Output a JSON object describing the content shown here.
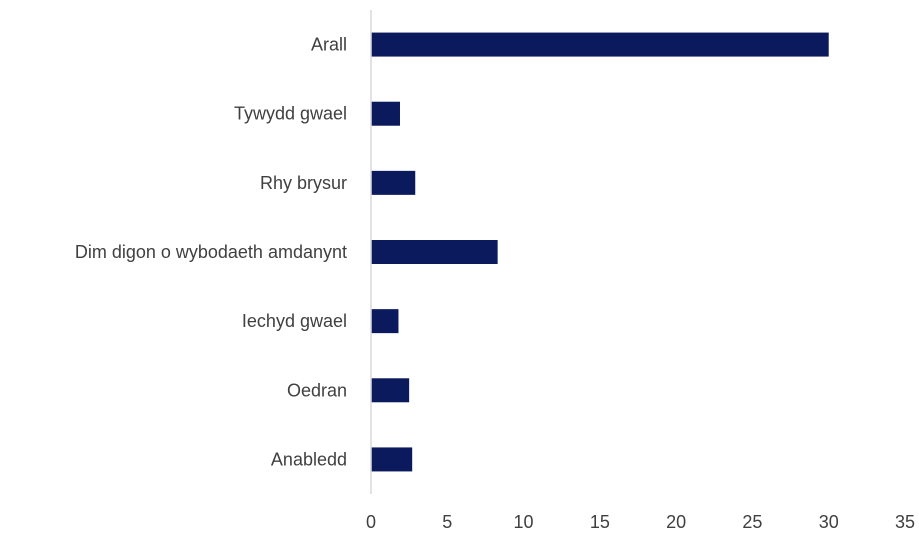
{
  "chart_data": {
    "type": "bar",
    "orientation": "horizontal",
    "categories": [
      "Arall",
      "Tywydd gwael",
      "Rhy brysur",
      "Dim digon o wybodaeth amdanynt",
      "Iechyd gwael",
      "Oedran",
      "Anabledd"
    ],
    "values": [
      30,
      1.9,
      2.9,
      8.3,
      1.8,
      2.5,
      2.7
    ],
    "xlim": [
      0,
      35
    ],
    "xticks": [
      0,
      5,
      10,
      15,
      20,
      25,
      30,
      35
    ],
    "grid": false,
    "legend": "none",
    "bar_color": "#0a1a5c",
    "axis_color": "#d9d9d9"
  }
}
